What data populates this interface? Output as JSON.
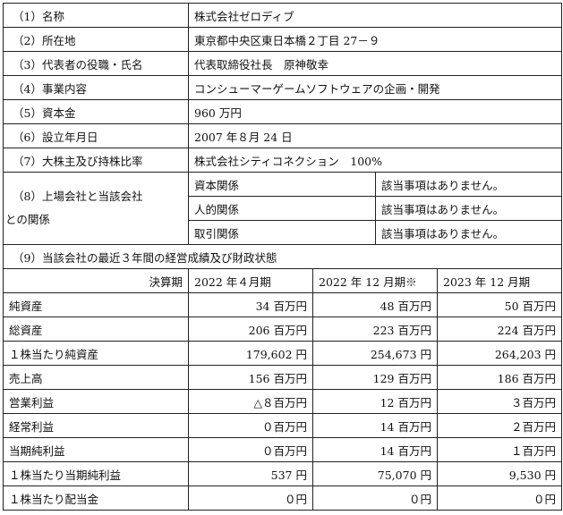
{
  "overview": [
    {
      "label": "（1）名称",
      "value": "株式会社ゼロディブ"
    },
    {
      "label": "（2）所在地",
      "value": "東京都中央区東日本橋２丁目 27－９"
    },
    {
      "label": "（3）代表者の役職・氏名",
      "value": "代表取締役社長　原神敬幸"
    },
    {
      "label": "（4）事業内容",
      "value": "コンシューマーゲームソフトウェアの企画・開発"
    },
    {
      "label": "（5）資本金",
      "value": "960 万円"
    },
    {
      "label": "（6）設立年月日",
      "value": "2007 年８月 24 日"
    },
    {
      "label": "（7）大株主及び持株比率",
      "value": "株式会社シティコネクション　100%"
    }
  ],
  "relationship": {
    "label_line1": "（8）上場会社と当該会社",
    "label_line2": "との関係",
    "items": [
      {
        "type": "資本関係",
        "value": "該当事項はありません。"
      },
      {
        "type": "人的関係",
        "value": "該当事項はありません。"
      },
      {
        "type": "取引関係",
        "value": "該当事項はありません。"
      }
    ]
  },
  "financials": {
    "section_title": "（9）当該会社の最近３年間の経営成績及び財政状態",
    "header": [
      "決算期",
      "2022 年４月期",
      "2022 年 12 月期※",
      "2023 年 12 月期"
    ],
    "rows": [
      {
        "label": "純資産",
        "values": [
          "34 百万円",
          "48 百万円",
          "50 百万円"
        ]
      },
      {
        "label": "総資産",
        "values": [
          "206 百万円",
          "223 百万円",
          "224 百万円"
        ]
      },
      {
        "label": "１株当たり純資産",
        "values": [
          "179,602 円",
          "254,673 円",
          "264,203 円"
        ]
      },
      {
        "label": "売上高",
        "values": [
          "156 百万円",
          "129 百万円",
          "186 百万円"
        ]
      },
      {
        "label": "営業利益",
        "values": [
          "△８百万円",
          "12 百万円",
          "３百万円"
        ]
      },
      {
        "label": "経常利益",
        "values": [
          "０百万円",
          "14 百万円",
          "２百万円"
        ]
      },
      {
        "label": "当期純利益",
        "values": [
          "０百万円",
          "14 百万円",
          "１百万円"
        ]
      },
      {
        "label": "１株当たり当期純利益",
        "values": [
          "537 円",
          "75,070 円",
          "9,530 円"
        ]
      },
      {
        "label": "１株当たり配当金",
        "values": [
          "０円",
          "０円",
          "０円"
        ]
      }
    ]
  }
}
